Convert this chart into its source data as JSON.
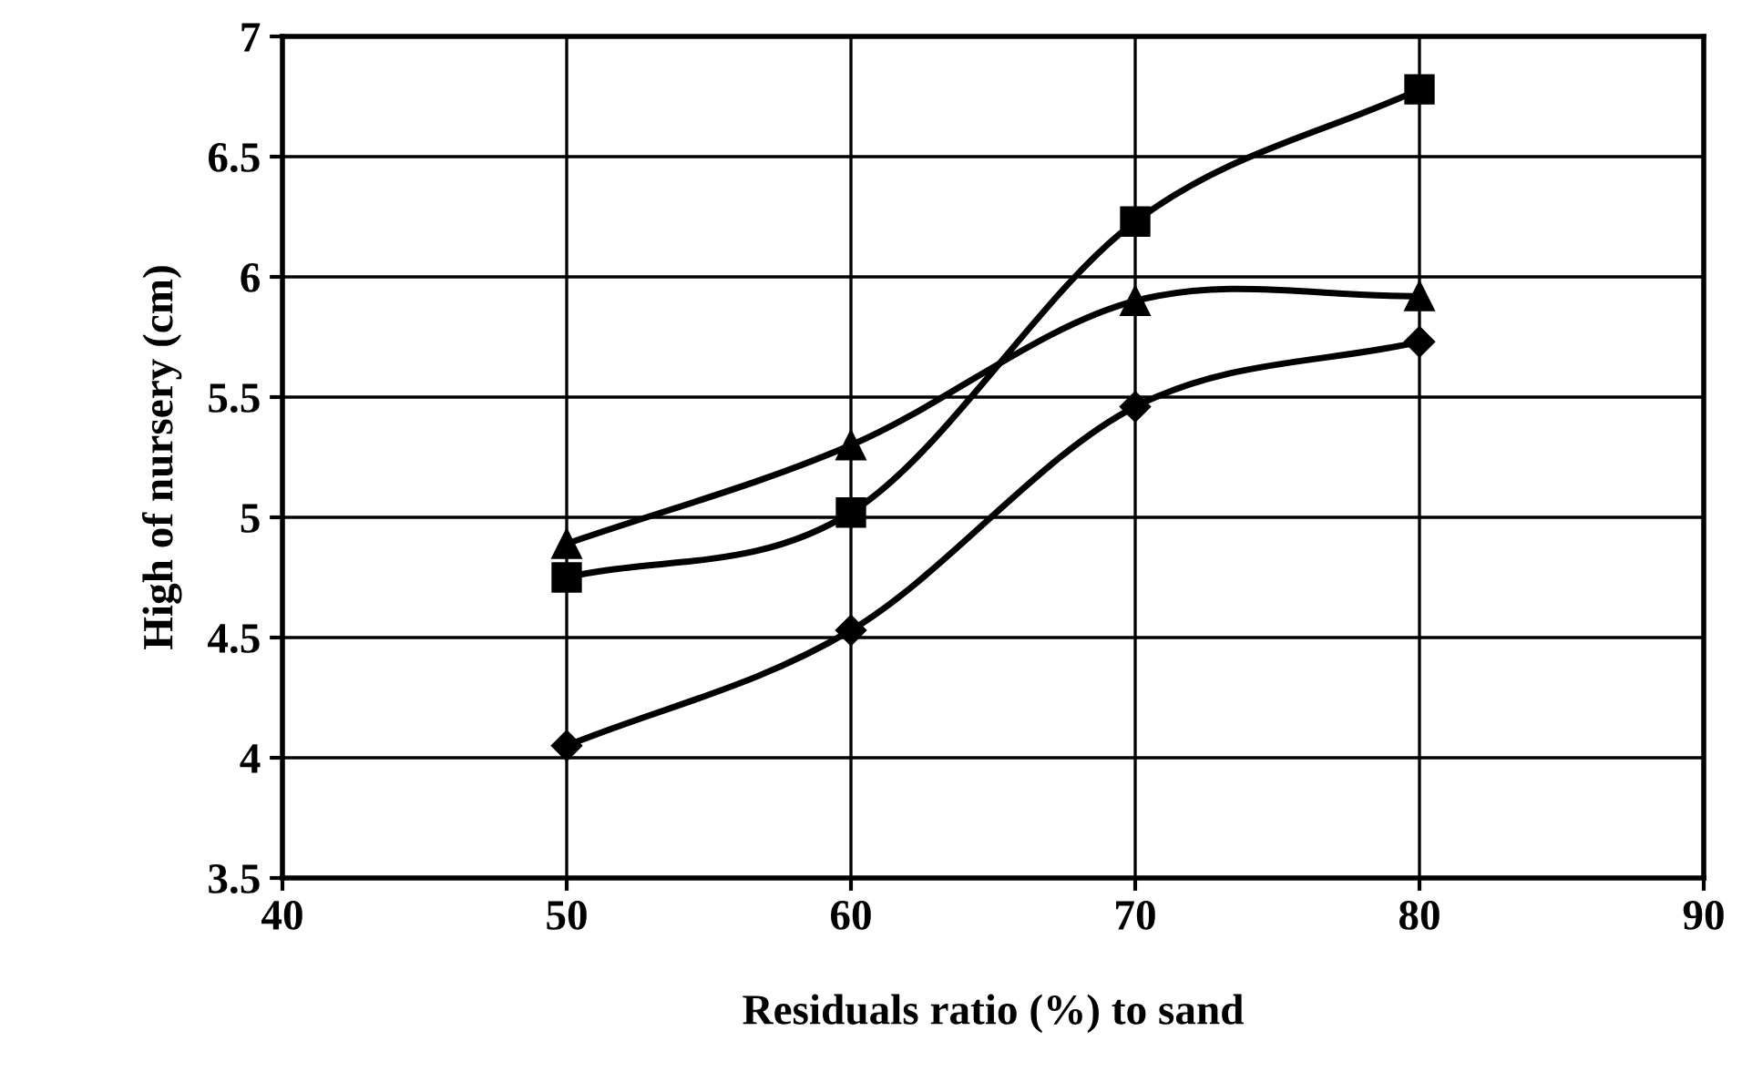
{
  "chart_data": {
    "type": "line",
    "xlabel": "Residuals ratio (%) to sand",
    "ylabel": "High of nursery (cm)",
    "x": [
      50,
      60,
      70,
      80
    ],
    "series": [
      {
        "color": "#000000",
        "marker": "square",
        "values": [
          4.75,
          5.02,
          6.23,
          6.78
        ]
      },
      {
        "color": "#000000",
        "marker": "triangle",
        "values": [
          4.89,
          5.3,
          5.9,
          5.92
        ]
      },
      {
        "color": "#000000",
        "marker": "diamond",
        "values": [
          4.05,
          4.53,
          5.46,
          5.73
        ]
      }
    ],
    "xlim": [
      40,
      90
    ],
    "xticks": [
      40,
      50,
      60,
      70,
      80,
      90
    ],
    "ylim": [
      3.5,
      7
    ],
    "yticks": [
      {
        "value": 3.5,
        "label": "3.5"
      },
      {
        "value": 4,
        "label": "4"
      },
      {
        "value": 4.5,
        "label": "4.5"
      },
      {
        "value": 5,
        "label": "5"
      },
      {
        "value": 5.5,
        "label": "5.5"
      },
      {
        "value": 6,
        "label": "6"
      },
      {
        "value": 6.5,
        "label": "6.5"
      },
      {
        "value": 7,
        "label": "7"
      }
    ],
    "grid": true,
    "line_style": "solid"
  }
}
